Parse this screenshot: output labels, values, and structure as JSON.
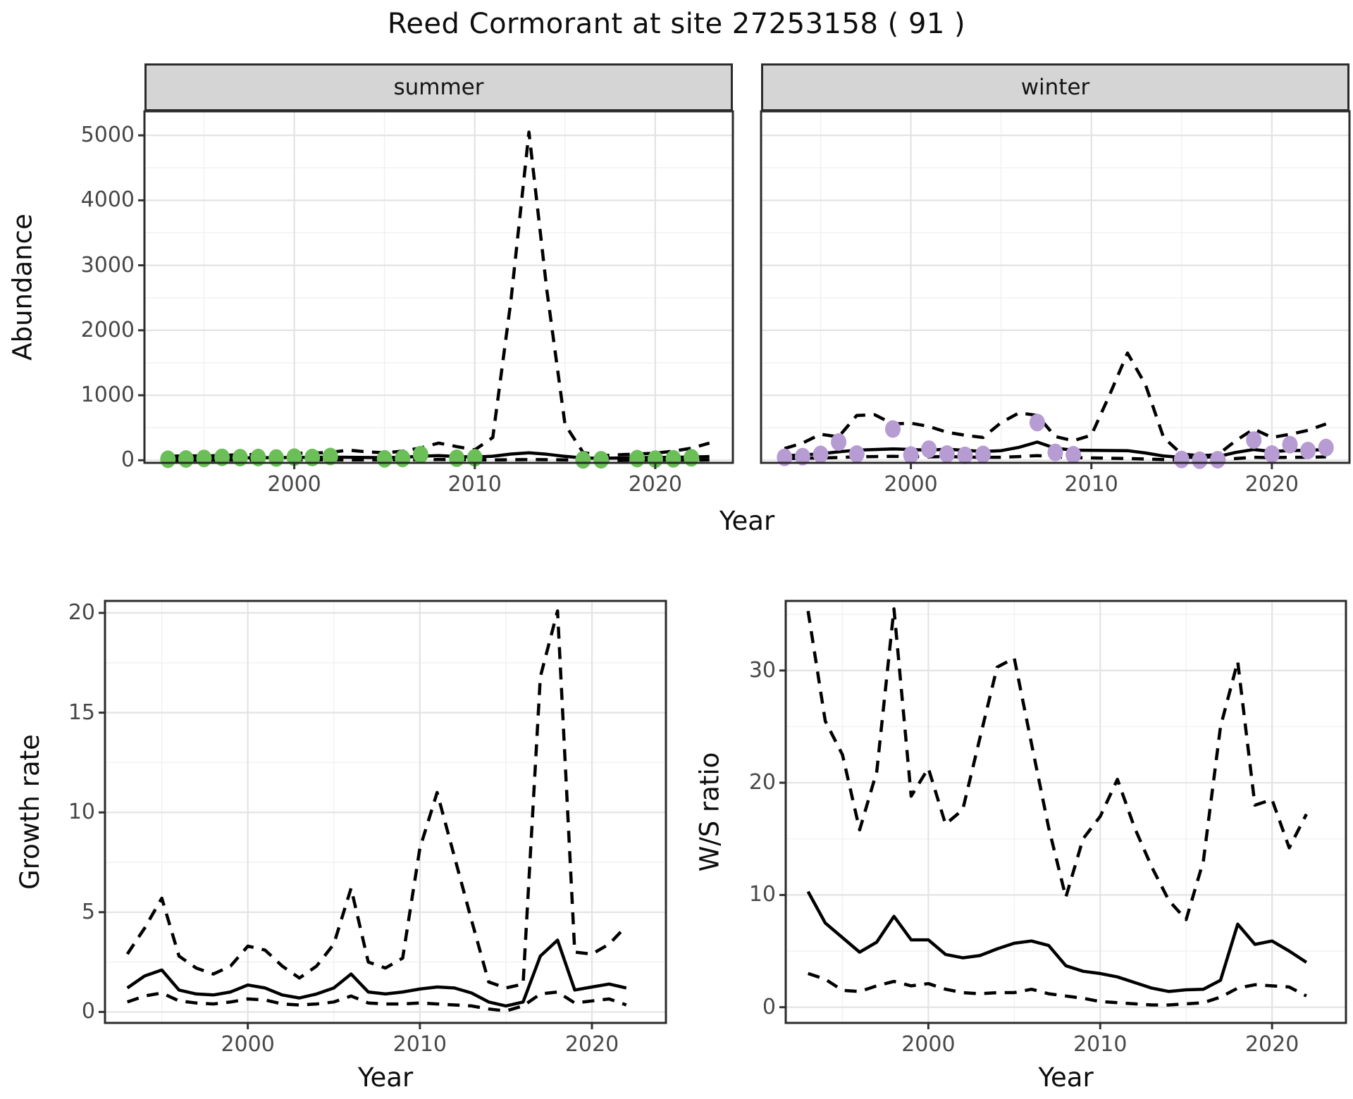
{
  "title": "Reed Cormorant at site 27253158 ( 91 )",
  "facets": {
    "summer": "summer",
    "winter": "winter"
  },
  "axis_titles": {
    "abundance": "Abundance",
    "year_top": "Year",
    "growth": "Growth rate",
    "ws": "W/S ratio",
    "year_growth": "Year",
    "year_ws": "Year"
  },
  "colors": {
    "summer_points": "#6abf57",
    "winter_points": "#b79bd3",
    "line": "#000000",
    "strip_bg": "#d5d5d5",
    "panel_border": "#2b2b2b",
    "grid_major": "#e3e3e3",
    "grid_minor": "#f1f1f1",
    "tick_text": "#474747"
  },
  "chart_data": [
    {
      "id": "abundance-summer",
      "type": "line",
      "facet": "summer",
      "xlabel": "Year",
      "ylabel": "Abundance",
      "xlim": [
        1991.7,
        2024.3
      ],
      "ylim": [
        -40,
        5370
      ],
      "xticks": [
        2000,
        2010,
        2020
      ],
      "xticks_minor": [
        1995,
        2005,
        2015
      ],
      "yticks": [
        0,
        1000,
        2000,
        3000,
        4000,
        5000
      ],
      "yticks_minor": [
        500,
        1500,
        2500,
        3500,
        4500
      ],
      "x": [
        1993,
        1994,
        1995,
        1996,
        1997,
        1998,
        1999,
        2000,
        2001,
        2002,
        2003,
        2004,
        2005,
        2006,
        2007,
        2008,
        2009,
        2010,
        2011,
        2012,
        2013,
        2014,
        2015,
        2016,
        2017,
        2018,
        2019,
        2020,
        2021,
        2022,
        2023
      ],
      "series": [
        {
          "name": "upper_ci",
          "style": "dashed",
          "values": [
            60,
            70,
            65,
            75,
            85,
            90,
            95,
            105,
            110,
            120,
            155,
            130,
            115,
            140,
            190,
            265,
            210,
            160,
            350,
            2450,
            5050,
            2600,
            550,
            120,
            70,
            85,
            95,
            110,
            140,
            185,
            265
          ]
        },
        {
          "name": "lower_ci",
          "style": "dashed",
          "values": [
            0,
            1,
            2,
            3,
            4,
            5,
            5,
            6,
            6,
            7,
            6,
            5,
            5,
            6,
            9,
            11,
            9,
            7,
            6,
            9,
            11,
            9,
            6,
            1,
            0,
            1,
            2,
            3,
            3,
            4,
            5
          ]
        },
        {
          "name": "estimate",
          "style": "solid",
          "values": [
            15,
            20,
            25,
            32,
            36,
            38,
            40,
            43,
            45,
            48,
            46,
            42,
            40,
            46,
            62,
            72,
            56,
            50,
            62,
            95,
            115,
            92,
            60,
            35,
            30,
            35,
            40,
            42,
            46,
            50,
            56
          ]
        }
      ],
      "points": {
        "name": "observed_counts_summer",
        "color_key": "summer_points",
        "x": [
          1993,
          1994,
          1995,
          1996,
          1997,
          1998,
          1999,
          2000,
          2001,
          2002,
          2005,
          2006,
          2007,
          2009,
          2010,
          2016,
          2017,
          2019,
          2020,
          2021,
          2022
        ],
        "y": [
          15,
          20,
          28,
          45,
          40,
          42,
          35,
          48,
          42,
          58,
          22,
          28,
          88,
          30,
          38,
          5,
          8,
          25,
          18,
          22,
          38
        ]
      }
    },
    {
      "id": "abundance-winter",
      "type": "line",
      "facet": "winter",
      "xlabel": "Year",
      "ylabel": "Abundance",
      "xlim": [
        1991.7,
        2024.3
      ],
      "ylim": [
        -40,
        5370
      ],
      "xticks": [
        2000,
        2010,
        2020
      ],
      "xticks_minor": [
        1995,
        2005,
        2015
      ],
      "yticks": [
        0,
        1000,
        2000,
        3000,
        4000,
        5000
      ],
      "yticks_minor": [
        500,
        1500,
        2500,
        3500,
        4500
      ],
      "x": [
        1993,
        1994,
        1995,
        1996,
        1997,
        1998,
        1999,
        2000,
        2001,
        2002,
        2003,
        2004,
        2005,
        2006,
        2007,
        2008,
        2009,
        2010,
        2011,
        2012,
        2013,
        2014,
        2015,
        2016,
        2017,
        2018,
        2019,
        2020,
        2021,
        2022,
        2023
      ],
      "series": [
        {
          "name": "upper_ci",
          "style": "dashed",
          "values": [
            180,
            265,
            400,
            360,
            690,
            700,
            560,
            570,
            520,
            430,
            385,
            350,
            580,
            730,
            690,
            365,
            300,
            385,
            1000,
            1650,
            1160,
            350,
            95,
            70,
            85,
            300,
            480,
            350,
            400,
            460,
            560
          ]
        },
        {
          "name": "lower_ci",
          "style": "dashed",
          "values": [
            25,
            30,
            35,
            42,
            52,
            56,
            60,
            56,
            52,
            56,
            50,
            45,
            46,
            56,
            72,
            52,
            42,
            36,
            32,
            26,
            20,
            10,
            5,
            5,
            8,
            26,
            46,
            40,
            45,
            46,
            52
          ]
        },
        {
          "name": "estimate",
          "style": "solid",
          "values": [
            70,
            80,
            100,
            130,
            155,
            165,
            175,
            165,
            155,
            170,
            152,
            135,
            148,
            200,
            280,
            185,
            155,
            152,
            150,
            148,
            112,
            65,
            45,
            45,
            55,
            120,
            165,
            135,
            150,
            152,
            165
          ]
        }
      ],
      "points": {
        "name": "observed_counts_winter",
        "color_key": "winter_points",
        "x": [
          1993,
          1994,
          1995,
          1996,
          1997,
          1999,
          2000,
          2001,
          2002,
          2003,
          2004,
          2007,
          2008,
          2009,
          2015,
          2016,
          2017,
          2019,
          2020,
          2021,
          2022,
          2023
        ],
        "y": [
          45,
          55,
          90,
          280,
          95,
          480,
          80,
          170,
          95,
          75,
          90,
          580,
          120,
          85,
          12,
          0,
          8,
          310,
          95,
          240,
          150,
          195
        ]
      }
    },
    {
      "id": "growth-rate",
      "type": "line",
      "xlabel": "Year",
      "ylabel": "Growth rate",
      "xlim": [
        1991.7,
        2024.3
      ],
      "ylim": [
        -0.55,
        20.6
      ],
      "xticks": [
        2000,
        2010,
        2020
      ],
      "xticks_minor": [
        1995,
        2005,
        2015
      ],
      "yticks": [
        0,
        5,
        10,
        15,
        20
      ],
      "yticks_minor": [
        2.5,
        7.5,
        12.5,
        17.5
      ],
      "x": [
        1993,
        1994,
        1995,
        1996,
        1997,
        1998,
        1999,
        2000,
        2001,
        2002,
        2003,
        2004,
        2005,
        2006,
        2007,
        2008,
        2009,
        2010,
        2011,
        2012,
        2013,
        2014,
        2015,
        2016,
        2017,
        2018,
        2019,
        2020,
        2021,
        2022
      ],
      "series": [
        {
          "name": "upper_ci",
          "style": "dashed",
          "values": [
            2.9,
            4.2,
            5.7,
            2.8,
            2.2,
            1.9,
            2.3,
            3.3,
            3.1,
            2.3,
            1.7,
            2.3,
            3.4,
            6.2,
            2.5,
            2.2,
            2.7,
            8.2,
            11.0,
            7.8,
            4.6,
            1.5,
            1.2,
            1.4,
            16.8,
            20.1,
            3.0,
            2.9,
            3.4,
            4.3
          ]
        },
        {
          "name": "lower_ci",
          "style": "dashed",
          "values": [
            0.5,
            0.8,
            0.95,
            0.55,
            0.45,
            0.4,
            0.5,
            0.65,
            0.6,
            0.4,
            0.35,
            0.4,
            0.5,
            0.8,
            0.45,
            0.4,
            0.4,
            0.45,
            0.4,
            0.35,
            0.3,
            0.15,
            0.05,
            0.3,
            0.9,
            1.0,
            0.45,
            0.55,
            0.65,
            0.35
          ]
        },
        {
          "name": "estimate",
          "style": "solid",
          "values": [
            1.2,
            1.8,
            2.1,
            1.1,
            0.9,
            0.85,
            1.0,
            1.35,
            1.2,
            0.85,
            0.7,
            0.9,
            1.2,
            1.9,
            1.0,
            0.9,
            1.0,
            1.15,
            1.25,
            1.2,
            0.95,
            0.5,
            0.3,
            0.5,
            2.8,
            3.6,
            1.1,
            1.25,
            1.4,
            1.2
          ]
        }
      ]
    },
    {
      "id": "ws-ratio",
      "type": "line",
      "xlabel": "Year",
      "ylabel": "W/S ratio",
      "xlim": [
        1991.7,
        2024.3
      ],
      "ylim": [
        -1.4,
        36.2
      ],
      "xticks": [
        2000,
        2010,
        2020
      ],
      "xticks_minor": [
        1995,
        2005,
        2015
      ],
      "yticks": [
        0,
        10,
        20,
        30
      ],
      "yticks_minor": [
        5,
        15,
        25,
        35
      ],
      "x": [
        1993,
        1994,
        1995,
        1996,
        1997,
        1998,
        1999,
        2000,
        2001,
        2002,
        2003,
        2004,
        2005,
        2006,
        2007,
        2008,
        2009,
        2010,
        2011,
        2012,
        2013,
        2014,
        2015,
        2016,
        2017,
        2018,
        2019,
        2020,
        2021,
        2022
      ],
      "series": [
        {
          "name": "upper_ci",
          "style": "dashed",
          "values": [
            35.3,
            25.5,
            22.5,
            15.8,
            21.0,
            35.5,
            18.8,
            21.3,
            16.3,
            17.6,
            24.0,
            30.3,
            31.1,
            23.5,
            16.0,
            9.8,
            15.0,
            17.0,
            20.3,
            16.0,
            12.5,
            9.5,
            7.8,
            13.0,
            25.0,
            30.8,
            18.0,
            18.5,
            14.2,
            17.2
          ]
        },
        {
          "name": "lower_ci",
          "style": "dashed",
          "values": [
            3.0,
            2.5,
            1.5,
            1.4,
            1.9,
            2.3,
            1.9,
            2.1,
            1.6,
            1.3,
            1.2,
            1.3,
            1.3,
            1.6,
            1.2,
            1.0,
            0.8,
            0.5,
            0.4,
            0.3,
            0.2,
            0.2,
            0.3,
            0.4,
            0.9,
            1.7,
            2.0,
            1.9,
            1.8,
            1.0
          ]
        },
        {
          "name": "estimate",
          "style": "solid",
          "values": [
            10.3,
            7.5,
            6.2,
            4.9,
            5.8,
            8.1,
            6.0,
            6.0,
            4.7,
            4.4,
            4.6,
            5.2,
            5.7,
            5.9,
            5.5,
            3.7,
            3.2,
            3.0,
            2.7,
            2.2,
            1.7,
            1.4,
            1.55,
            1.6,
            2.4,
            7.4,
            5.6,
            5.9,
            5.0,
            4.0
          ]
        }
      ]
    }
  ]
}
